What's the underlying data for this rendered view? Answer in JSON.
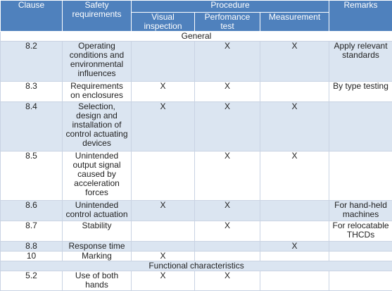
{
  "headers": {
    "clause": "Clause",
    "safety": "Safety requirements",
    "procedure": "Procedure",
    "visual": "Visual inspection",
    "performance": "Perfomance test",
    "measurement": "Measurement",
    "remarks": "Remarks"
  },
  "section_general": "General",
  "section_functional": "Functional characteristics",
  "rows": [
    {
      "clause": "8.2",
      "requirement": "Operating conditions and environmental influences",
      "visual": "",
      "performance": "X",
      "measurement": "X",
      "remarks": "Apply relevant standards"
    },
    {
      "clause": "8.3",
      "requirement": "Requirements on enclosures",
      "visual": "X",
      "performance": "X",
      "measurement": "",
      "remarks": "By type testing"
    },
    {
      "clause": "8.4",
      "requirement": "Selection, design and installation of control actuating devices",
      "visual": "X",
      "performance": "X",
      "measurement": "X",
      "remarks": ""
    },
    {
      "clause": "8.5",
      "requirement": "Unintended output signal caused by acceleration forces",
      "visual": "",
      "performance": "X",
      "measurement": "X",
      "remarks": ""
    },
    {
      "clause": "8.6",
      "requirement": "Unintended control actuation",
      "visual": "X",
      "performance": "X",
      "measurement": "",
      "remarks": "For hand-held machines"
    },
    {
      "clause": "8.7",
      "requirement": "Stability",
      "visual": "",
      "performance": "X",
      "measurement": "",
      "remarks": "For relocatable THCDs"
    },
    {
      "clause": "8.8",
      "requirement": "Response time",
      "visual": "",
      "performance": "",
      "measurement": "X",
      "remarks": ""
    },
    {
      "clause": "10",
      "requirement": "Marking",
      "visual": "X",
      "performance": "",
      "measurement": "",
      "remarks": ""
    },
    {
      "clause": "5.2",
      "requirement": "Use of both hands",
      "visual": "X",
      "performance": "X",
      "measurement": "",
      "remarks": ""
    }
  ]
}
